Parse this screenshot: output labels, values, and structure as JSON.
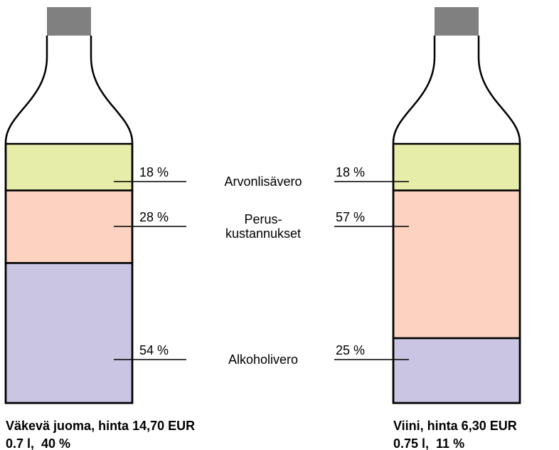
{
  "chart_data": {
    "type": "bottle",
    "stacked": true,
    "categories": [
      "Väkevä juoma, hinta 14,70 EUR",
      "Viini, hinta 6,30 EUR"
    ],
    "subtitles": [
      "0.7 l,  40 %",
      "0.75 l,  11 %"
    ],
    "series": [
      {
        "name": "Arvonlisävero",
        "color": "#e6eda8",
        "values": [
          18,
          18
        ],
        "value_labels": [
          "18 %",
          "18 %"
        ]
      },
      {
        "name": "Perus-\nkustannukset",
        "color": "#fbd3c0",
        "values": [
          28,
          57
        ],
        "value_labels": [
          "28 %",
          "57 %"
        ]
      },
      {
        "name": "Alkoholivero",
        "color": "#c9c5e2",
        "values": [
          54,
          25
        ],
        "value_labels": [
          "54 %",
          "25 %"
        ]
      }
    ],
    "ylim": [
      0,
      100
    ]
  }
}
